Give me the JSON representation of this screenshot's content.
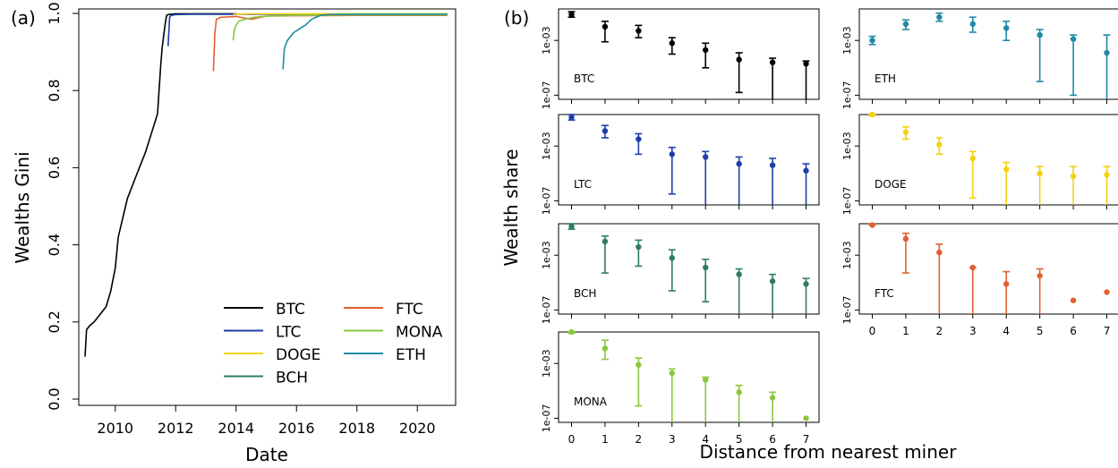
{
  "panel_a_label": "(a)",
  "panel_b_label": "(b)",
  "chart_data": [
    {
      "type": "line",
      "xlabel": "Date",
      "ylabel": "Wealths Gini",
      "xlim": [
        2009,
        2021
      ],
      "ylim": [
        0.0,
        1.0
      ],
      "xticks": [
        "2010",
        "2012",
        "2014",
        "2016",
        "2018",
        "2020"
      ],
      "yticks": [
        "0.0",
        "0.2",
        "0.4",
        "0.6",
        "0.8",
        "1.0"
      ],
      "grid": false,
      "legend": "bottom-right",
      "series": [
        {
          "name": "BTC",
          "color": "#000000",
          "x": [
            2009.0,
            2009.05,
            2009.15,
            2009.3,
            2009.5,
            2009.7,
            2009.85,
            2010.0,
            2010.1,
            2010.25,
            2010.4,
            2010.6,
            2010.8,
            2011.0,
            2011.2,
            2011.4,
            2011.5,
            2011.55,
            2011.6,
            2011.65,
            2011.7,
            2011.75,
            2011.85,
            2012.0,
            2013.0,
            2014.0
          ],
          "y": [
            0.11,
            0.18,
            0.19,
            0.2,
            0.22,
            0.24,
            0.28,
            0.34,
            0.42,
            0.47,
            0.52,
            0.56,
            0.6,
            0.64,
            0.69,
            0.74,
            0.86,
            0.91,
            0.94,
            0.97,
            0.995,
            0.997,
            0.998,
            0.999,
            0.999,
            0.999
          ]
        },
        {
          "name": "LTC",
          "color": "#1f3fa8",
          "x": [
            2011.75,
            2011.8,
            2011.85,
            2012.0,
            2012.5,
            2013.0,
            2014.0,
            2016.0,
            2018.0,
            2021.0
          ],
          "y": [
            0.915,
            0.99,
            0.995,
            0.997,
            0.998,
            0.998,
            0.998,
            0.998,
            0.998,
            0.998
          ]
        },
        {
          "name": "DOGE",
          "color": "#f2d20f",
          "x": [
            2013.9,
            2014.0,
            2014.5,
            2016.0,
            2018.0,
            2021.0
          ],
          "y": [
            0.998,
            0.998,
            0.999,
            0.999,
            0.999,
            0.999
          ]
        },
        {
          "name": "BCH",
          "color": "#2e7d5b",
          "x": [
            2017.5,
            2018.0,
            2019.0,
            2020.0,
            2021.0
          ],
          "y": [
            0.995,
            0.995,
            0.995,
            0.995,
            0.995
          ]
        },
        {
          "name": "FTC",
          "color": "#e06030",
          "x": [
            2013.25,
            2013.3,
            2013.35,
            2013.5,
            2014.0,
            2014.5,
            2015.0,
            2016.0,
            2018.0,
            2021.0
          ],
          "y": [
            0.85,
            0.95,
            0.985,
            0.99,
            0.992,
            0.985,
            0.993,
            0.994,
            0.995,
            0.995
          ]
        },
        {
          "name": "MONA",
          "color": "#8cc63e",
          "x": [
            2013.9,
            2013.95,
            2014.0,
            2014.1,
            2014.3,
            2014.6,
            2015.0,
            2016.0,
            2018.0,
            2021.0
          ],
          "y": [
            0.93,
            0.96,
            0.97,
            0.98,
            0.985,
            0.99,
            0.993,
            0.995,
            0.996,
            0.996
          ]
        },
        {
          "name": "ETH",
          "color": "#1f8aa5",
          "x": [
            2015.55,
            2015.6,
            2015.7,
            2015.9,
            2016.1,
            2016.3,
            2016.5,
            2016.8,
            2017.0,
            2018.0,
            2021.0
          ],
          "y": [
            0.855,
            0.91,
            0.93,
            0.95,
            0.96,
            0.97,
            0.985,
            0.995,
            0.997,
            0.998,
            0.998
          ]
        }
      ]
    },
    {
      "type": "scatter",
      "xlabel": "Distance from nearest miner",
      "ylabel": "Wealth share",
      "x": [
        0,
        1,
        2,
        3,
        4,
        5,
        6,
        7
      ],
      "xlim": [
        -0.2,
        7.2
      ],
      "ylim_log10": [
        -7.3,
        -0.7
      ],
      "yticks": [
        "1e-03",
        "1e-07"
      ],
      "error_bars": true,
      "panels": [
        {
          "name": "BTC",
          "color": "#000000",
          "log10_y": [
            -1.1,
            -2.0,
            -2.3,
            -3.2,
            -3.7,
            -4.4,
            -4.6,
            -4.7
          ],
          "log10_lo": [
            -1.3,
            -3.1,
            -2.8,
            -4.0,
            -5.0,
            -6.8,
            -7.5,
            -7.5
          ],
          "log10_hi": [
            -0.9,
            -1.6,
            -1.9,
            -2.8,
            -3.2,
            -3.9,
            -4.3,
            -4.5
          ]
        },
        {
          "name": "ETH",
          "color": "#1f8aa5",
          "log10_y": [
            -3.0,
            -1.8,
            -1.3,
            -1.8,
            -2.1,
            -2.6,
            -2.9,
            -3.9
          ],
          "log10_lo": [
            -3.3,
            -2.2,
            -1.6,
            -2.4,
            -3.0,
            -6.0,
            -7.0,
            -7.5
          ],
          "log10_hi": [
            -2.7,
            -1.5,
            -1.0,
            -1.3,
            -1.6,
            -2.2,
            -2.6,
            -2.6
          ]
        },
        {
          "name": "LTC",
          "color": "#1f3fa8",
          "log10_y": [
            -0.9,
            -1.9,
            -2.5,
            -3.6,
            -3.8,
            -4.3,
            -4.4,
            -4.8
          ],
          "log10_lo": [
            -1.1,
            -2.4,
            -3.6,
            -6.5,
            -7.5,
            -7.5,
            -7.5,
            -7.5
          ],
          "log10_hi": [
            -0.7,
            -1.5,
            -2.1,
            -3.1,
            -3.4,
            -3.8,
            -3.9,
            -4.3
          ]
        },
        {
          "name": "DOGE",
          "color": "#f2d20f",
          "log10_y": [
            -0.7,
            -2.0,
            -2.9,
            -3.9,
            -4.7,
            -5.0,
            -5.2,
            -5.1
          ],
          "log10_lo": [
            -0.8,
            -2.5,
            -3.6,
            -6.8,
            -7.5,
            -7.5,
            -7.5,
            -7.5
          ],
          "log10_hi": [
            -0.7,
            -1.6,
            -2.4,
            -3.4,
            -4.2,
            -4.5,
            -4.5,
            -4.5
          ]
        },
        {
          "name": "BCH",
          "color": "#2e7d5b",
          "log10_y": [
            -0.9,
            -2.0,
            -2.4,
            -3.2,
            -3.9,
            -4.4,
            -4.9,
            -5.1
          ],
          "log10_lo": [
            -1.1,
            -4.3,
            -3.8,
            -5.6,
            -6.4,
            -7.5,
            -7.5,
            -7.5
          ],
          "log10_hi": [
            -0.7,
            -1.6,
            -1.9,
            -2.6,
            -3.3,
            -4.0,
            -4.4,
            -4.7
          ]
        },
        {
          "name": "FTC",
          "color": "#e06030",
          "log10_y": [
            -0.8,
            -1.8,
            -2.8,
            -3.9,
            -5.1,
            -4.5,
            -6.3,
            -5.7
          ],
          "log10_lo": [
            -0.8,
            -4.3,
            -7.5,
            -7.5,
            -7.5,
            -7.5,
            -6.3,
            -5.7
          ],
          "log10_hi": [
            -0.7,
            -1.4,
            -2.2,
            -3.9,
            -4.2,
            -4.0,
            -6.3,
            -5.7
          ]
        },
        {
          "name": "MONA",
          "color": "#8cc63e",
          "log10_y": [
            -0.7,
            -1.9,
            -3.1,
            -3.7,
            -4.2,
            -5.1,
            -5.5,
            -7.0
          ],
          "log10_lo": [
            -0.8,
            -2.7,
            -6.1,
            -7.5,
            -7.5,
            -7.5,
            -7.5,
            -7.0
          ],
          "log10_hi": [
            -0.7,
            -1.3,
            -2.6,
            -3.4,
            -4.0,
            -4.6,
            -5.1,
            -7.0
          ]
        }
      ]
    }
  ]
}
